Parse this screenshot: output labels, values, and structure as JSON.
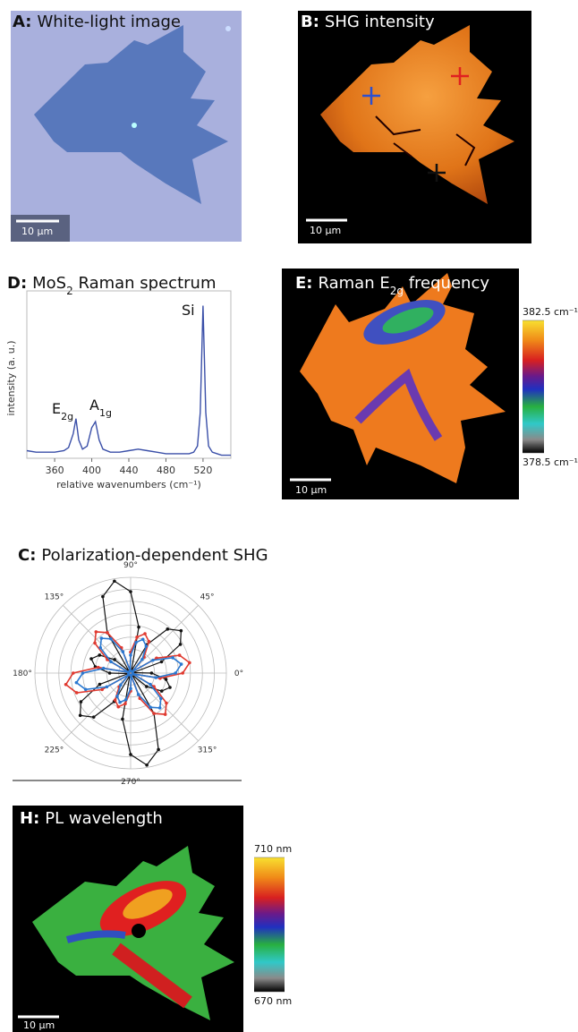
{
  "panels": {
    "A": {
      "label": "A:",
      "title": "White-light image",
      "scale_bar": "10 µm"
    },
    "B": {
      "label": "B:",
      "title": "SHG intensity",
      "scale_bar": "10 µm"
    },
    "E": {
      "label": "E:",
      "title": [
        "Raman E",
        "2g",
        " frequency"
      ],
      "scale_bar": "10 µm",
      "colorbar": {
        "lim": [
          378.5,
          382.5
        ],
        "ticks": [
          {
            "value": 382.5,
            "label": "382.5 cm⁻¹"
          },
          {
            "value": 378.5,
            "label": "378.5 cm⁻¹"
          }
        ]
      }
    },
    "H": {
      "label": "H:",
      "title": "PL wavelength",
      "scale_bar": "10 µm",
      "colorbar": {
        "lim": [
          670,
          710
        ],
        "ticks": [
          {
            "value": 710,
            "label": "710 nm"
          },
          {
            "value": 670,
            "label": "670 nm"
          }
        ]
      }
    }
  },
  "chart_data": [
    {
      "type": "line",
      "panel": "D:",
      "title": [
        "MoS",
        "2",
        " Raman spectrum"
      ],
      "xlabel": "relative wavenumbers (cm⁻¹)",
      "ylabel": "intensity (a. u.)",
      "x": [
        330,
        340,
        350,
        360,
        370,
        375,
        380,
        383,
        386,
        390,
        395,
        400,
        404,
        408,
        412,
        420,
        430,
        440,
        450,
        460,
        470,
        480,
        490,
        500,
        505,
        510,
        514,
        517,
        520,
        523,
        526,
        530,
        540,
        550
      ],
      "series": [
        {
          "color": "#3a4fa8",
          "values": [
            0.05,
            0.04,
            0.04,
            0.04,
            0.05,
            0.07,
            0.16,
            0.26,
            0.12,
            0.06,
            0.08,
            0.2,
            0.24,
            0.12,
            0.06,
            0.04,
            0.04,
            0.05,
            0.06,
            0.05,
            0.04,
            0.03,
            0.03,
            0.03,
            0.03,
            0.04,
            0.08,
            0.3,
            1.0,
            0.3,
            0.08,
            0.04,
            0.02,
            0.02
          ]
        }
      ],
      "xlim": [
        330,
        550
      ],
      "ylim": [
        0,
        1.05
      ],
      "xticks": [
        360,
        400,
        440,
        480,
        520
      ],
      "annotations": [
        {
          "text": [
            "E",
            "2g"
          ]
        },
        {
          "text": [
            "A",
            "1g"
          ]
        },
        {
          "text": [
            "Si"
          ]
        }
      ]
    },
    {
      "type": "polar",
      "panel": "C:",
      "title": "Polarization-dependent SHG",
      "theta": [
        0,
        10,
        20,
        30,
        40,
        50,
        60,
        70,
        80,
        90,
        100,
        110,
        120,
        130,
        140,
        150,
        160,
        170,
        180,
        190,
        200,
        210,
        220,
        230,
        240,
        250,
        260,
        270,
        280,
        290,
        300,
        310,
        320,
        330,
        340,
        350
      ],
      "thetaticks": [
        {
          "value": 0,
          "label": "0°"
        },
        {
          "value": 45,
          "label": "45°"
        },
        {
          "value": 90,
          "label": "90°"
        },
        {
          "value": 135,
          "label": "135°"
        },
        {
          "value": 180,
          "label": "180°"
        },
        {
          "value": 225,
          "label": "225°"
        },
        {
          "value": 270,
          "label": "270°"
        },
        {
          "value": 315,
          "label": "315°"
        }
      ],
      "rlim": [
        0,
        8
      ],
      "rticks": [
        1,
        2,
        3,
        4,
        5,
        6,
        7,
        8
      ],
      "series": [
        {
          "color": "#111111",
          "values": [
            1.75,
            0.2,
            2.75,
            4.8,
            5.5,
            4.8,
            2.75,
            0.2,
            3.9,
            6.8,
            7.8,
            6.8,
            3.9,
            0.2,
            1.75,
            3.0,
            3.5,
            3.0,
            1.75,
            0.2,
            2.75,
            4.8,
            5.5,
            4.8,
            2.75,
            0.2,
            3.9,
            6.8,
            7.8,
            6.8,
            3.9,
            0.2,
            1.75,
            3.0,
            3.5,
            3.0
          ]
        },
        {
          "color": "#e03a30",
          "values": [
            4.35,
            5.0,
            4.35,
            2.5,
            0.2,
            1.75,
            3.05,
            3.5,
            3.05,
            1.75,
            0.2,
            2.25,
            3.9,
            4.5,
            3.9,
            2.25,
            0.2,
            2.75,
            4.8,
            5.5,
            4.8,
            2.75,
            0.2,
            1.5,
            2.6,
            3.0,
            2.6,
            1.5,
            0.2,
            2.25,
            3.9,
            4.5,
            3.9,
            2.25,
            0.2,
            2.5
          ]
        },
        {
          "color": "#2a78d0",
          "values": [
            3.75,
            4.3,
            3.75,
            2.15,
            0.2,
            1.5,
            2.6,
            3.0,
            2.6,
            1.5,
            0.2,
            1.9,
            3.3,
            3.8,
            3.3,
            1.9,
            0.2,
            2.3,
            4.0,
            4.6,
            4.0,
            2.3,
            0.2,
            1.3,
            2.25,
            2.6,
            2.25,
            1.3,
            0.2,
            1.9,
            3.3,
            3.8,
            3.3,
            1.9,
            0.2,
            2.15
          ]
        }
      ]
    }
  ]
}
